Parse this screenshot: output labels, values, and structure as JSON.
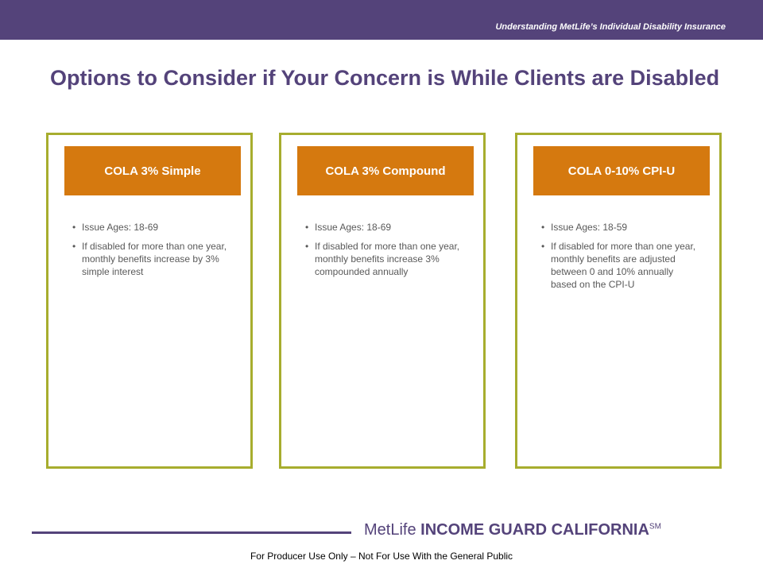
{
  "header": {
    "subtitle": "Understanding MetLife’s Individual Disability Insurance"
  },
  "title": "Options to Consider if Your Concern is While Clients are Disabled",
  "cards": [
    {
      "label": "COLA 3% Simple",
      "bullets": [
        "Issue Ages: 18-69",
        "If disabled for more than one year, monthly benefits increase by 3% simple interest"
      ]
    },
    {
      "label": "COLA 3% Compound",
      "bullets": [
        "Issue Ages: 18-69",
        "If disabled for more than one year, monthly benefits increase 3% compounded annually"
      ]
    },
    {
      "label": "COLA 0-10% CPI-U",
      "bullets": [
        "Issue Ages: 18-59",
        "If disabled for more than one year, monthly benefits are adjusted between 0 and 10% annually based on the CPI-U"
      ]
    }
  ],
  "footer": {
    "brand_prefix": "MetLife",
    "brand_name": "INCOME GUARD CALIFORNIA",
    "brand_mark": "SM",
    "disclaimer": "For Producer Use Only – Not For Use With the General Public"
  },
  "colors": {
    "purple": "#54437a",
    "orange": "#d5790f",
    "green_border": "#a7ad2e"
  }
}
